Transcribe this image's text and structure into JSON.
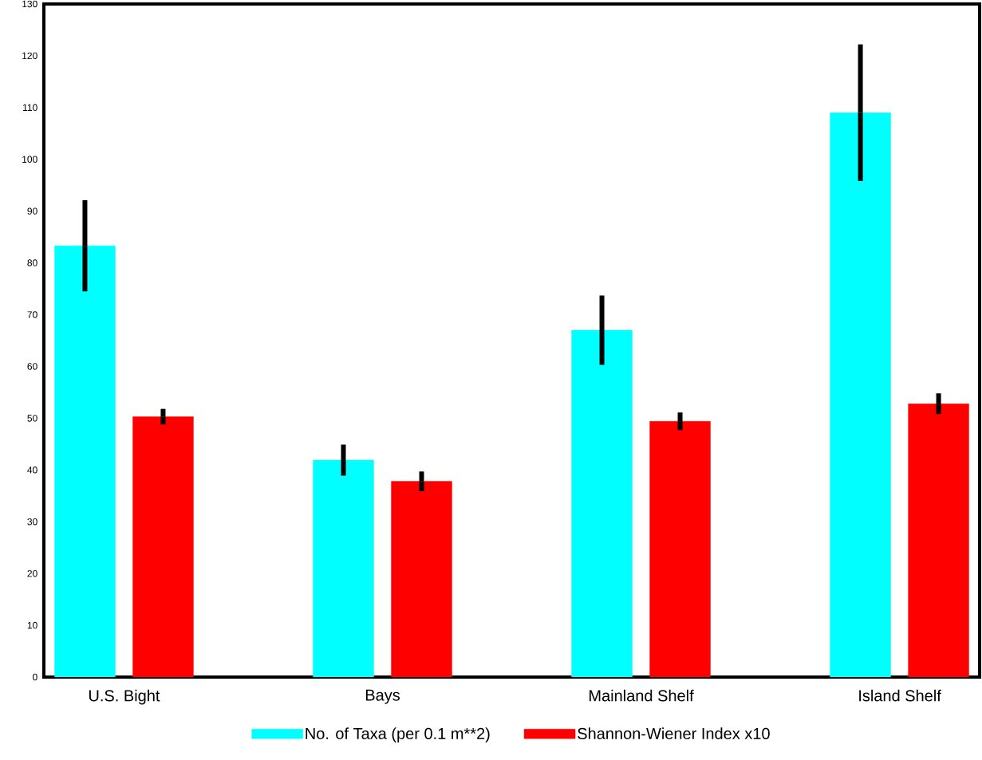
{
  "chart_data": {
    "type": "bar",
    "categories": [
      "U.S. Bight",
      "Bays",
      "Mainland Shelf",
      "Island Shelf"
    ],
    "series": [
      {
        "name": "No. of Taxa (per 0.1 m**2)",
        "color": "#00ffff",
        "values": [
          83.3,
          41.9,
          67.0,
          109.0
        ],
        "errors": [
          8.8,
          3.0,
          6.7,
          13.2
        ]
      },
      {
        "name": "Shannon-Wiener Index x10",
        "color": "#ff0000",
        "values": [
          50.3,
          37.8,
          49.4,
          52.8
        ],
        "errors": [
          1.5,
          1.9,
          1.7,
          2.0
        ]
      }
    ],
    "ylim": [
      0,
      130
    ],
    "yticks": [
      0,
      10,
      20,
      30,
      40,
      50,
      60,
      70,
      80,
      90,
      100,
      110,
      120,
      130
    ],
    "grid": false,
    "legend": "bottom"
  }
}
